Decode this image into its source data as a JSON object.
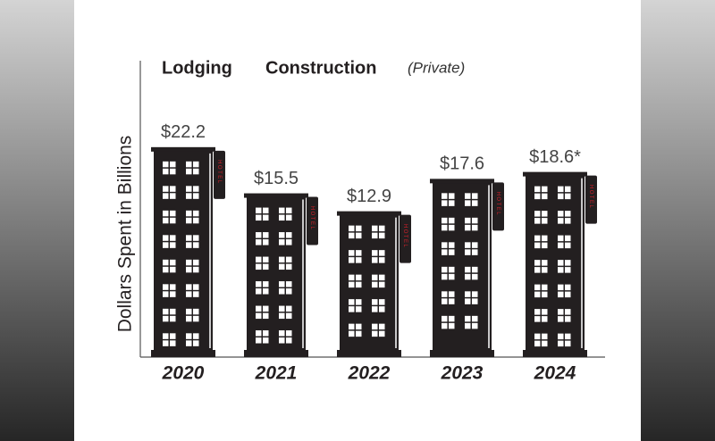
{
  "chart_data": {
    "type": "bar",
    "title_parts": [
      "Lodging",
      "Construction"
    ],
    "subtitle": "(Private)",
    "y_label": "Dollars Spent in Billions",
    "sign_text": "HOTEL",
    "categories": [
      "2020",
      "2021",
      "2022",
      "2023",
      "2024"
    ],
    "values": [
      22.2,
      15.5,
      12.9,
      17.6,
      18.6
    ],
    "value_labels": [
      "$22.2",
      "$15.5",
      "$12.9",
      "$17.6",
      "$18.6*"
    ],
    "color": "#231f20",
    "ylim": [
      -8,
      35
    ]
  }
}
